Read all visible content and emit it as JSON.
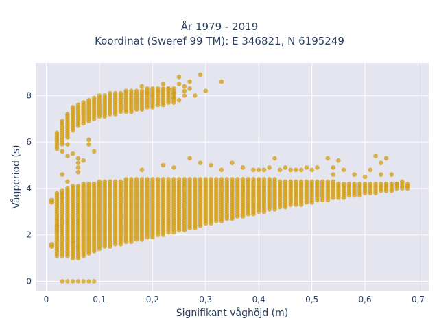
{
  "chart_data": {
    "type": "scatter",
    "title": "År 1979 - 2019",
    "subtitle": "Koordinat (Sweref 99 TM): E 346821, N 6195249",
    "xlabel": "Signifikant våghöjd (m)",
    "ylabel": "Vågperiod (s)",
    "xlim": [
      -0.02,
      0.72
    ],
    "ylim": [
      -0.4,
      9.4
    ],
    "grid": true,
    "marker_color": "#D4A017",
    "background": "#E5E5F0",
    "x_ticks": [
      {
        "value": 0,
        "label": "0"
      },
      {
        "value": 0.1,
        "label": "0,1"
      },
      {
        "value": 0.2,
        "label": "0,2"
      },
      {
        "value": 0.3,
        "label": "0,3"
      },
      {
        "value": 0.4,
        "label": "0,4"
      },
      {
        "value": 0.5,
        "label": "0,5"
      },
      {
        "value": 0.6,
        "label": "0,6"
      },
      {
        "value": 0.7,
        "label": "0,7"
      }
    ],
    "y_ticks": [
      {
        "value": 0,
        "label": "0"
      },
      {
        "value": 2,
        "label": "2"
      },
      {
        "value": 4,
        "label": "4"
      },
      {
        "value": 6,
        "label": "6"
      },
      {
        "value": 8,
        "label": "8"
      }
    ],
    "bands": [
      {
        "x_start": 0.02,
        "x_end": 0.68,
        "x_step": 0.01,
        "y_min": [
          1.1,
          1.1,
          1.1,
          1.0,
          1.0,
          1.1,
          1.2,
          1.3,
          1.4,
          1.5,
          1.5,
          1.6,
          1.6,
          1.7,
          1.7,
          1.8,
          1.8,
          1.9,
          1.9,
          2.0,
          2.0,
          2.1,
          2.1,
          2.2,
          2.2,
          2.3,
          2.3,
          2.4,
          2.5,
          2.5,
          2.6,
          2.6,
          2.7,
          2.7,
          2.8,
          2.8,
          2.9,
          2.9,
          3.0,
          3.0,
          3.1,
          3.1,
          3.2,
          3.2,
          3.3,
          3.3,
          3.3,
          3.4,
          3.4,
          3.5,
          3.5,
          3.5,
          3.6,
          3.6,
          3.6,
          3.7,
          3.7,
          3.7,
          3.8,
          3.8,
          3.8,
          3.9,
          3.9,
          3.9,
          4.0,
          4.0,
          4.0
        ],
        "y_max": [
          3.8,
          3.9,
          4.0,
          4.1,
          4.1,
          4.2,
          4.2,
          4.2,
          4.3,
          4.3,
          4.3,
          4.3,
          4.3,
          4.4,
          4.4,
          4.4,
          4.4,
          4.4,
          4.4,
          4.4,
          4.4,
          4.4,
          4.4,
          4.4,
          4.4,
          4.4,
          4.4,
          4.4,
          4.4,
          4.4,
          4.4,
          4.4,
          4.4,
          4.4,
          4.4,
          4.4,
          4.4,
          4.4,
          4.4,
          4.4,
          4.4,
          4.4,
          4.3,
          4.3,
          4.3,
          4.3,
          4.3,
          4.3,
          4.3,
          4.3,
          4.3,
          4.3,
          4.3,
          4.2,
          4.2,
          4.2,
          4.2,
          4.2,
          4.2,
          4.2,
          4.2,
          4.2,
          4.2,
          4.2,
          4.2,
          4.2,
          4.2
        ],
        "y_step": 0.1
      },
      {
        "x_start": 0.02,
        "x_end": 0.24,
        "x_step": 0.01,
        "y_min": [
          5.8,
          5.9,
          6.2,
          6.5,
          6.7,
          6.8,
          6.9,
          7.0,
          7.1,
          7.1,
          7.2,
          7.2,
          7.3,
          7.3,
          7.3,
          7.4,
          7.4,
          7.5,
          7.5,
          7.6,
          7.6,
          7.7,
          7.7
        ],
        "y_max": [
          6.4,
          6.9,
          7.2,
          7.5,
          7.6,
          7.7,
          7.8,
          7.9,
          8.0,
          8.0,
          8.1,
          8.1,
          8.1,
          8.2,
          8.2,
          8.2,
          8.2,
          8.3,
          8.3,
          8.3,
          8.3,
          8.3,
          8.3
        ],
        "y_step": 0.1
      }
    ],
    "outliers": [
      [
        0.03,
        0
      ],
      [
        0.04,
        0
      ],
      [
        0.05,
        0
      ],
      [
        0.06,
        0
      ],
      [
        0.07,
        0
      ],
      [
        0.08,
        0
      ],
      [
        0.09,
        0
      ],
      [
        0.01,
        1.6
      ],
      [
        0.01,
        1.5
      ],
      [
        0.01,
        3.5
      ],
      [
        0.01,
        3.4
      ],
      [
        0.03,
        4.6
      ],
      [
        0.04,
        4.3
      ],
      [
        0.03,
        3.8
      ],
      [
        0.03,
        3.6
      ],
      [
        0.06,
        5.3
      ],
      [
        0.06,
        5.1
      ],
      [
        0.06,
        4.9
      ],
      [
        0.07,
        5.2
      ],
      [
        0.06,
        4.7
      ],
      [
        0.08,
        5.9
      ],
      [
        0.08,
        6.1
      ],
      [
        0.09,
        5.6
      ],
      [
        0.03,
        5.6
      ],
      [
        0.04,
        5.4
      ],
      [
        0.05,
        5.5
      ],
      [
        0.04,
        5.9
      ],
      [
        0.02,
        5.7
      ],
      [
        0.18,
        8.4
      ],
      [
        0.19,
        8.1
      ],
      [
        0.2,
        8.0
      ],
      [
        0.21,
        8.2
      ],
      [
        0.22,
        8.5
      ],
      [
        0.23,
        8.3
      ],
      [
        0.24,
        8.1
      ],
      [
        0.25,
        8.8
      ],
      [
        0.25,
        8.5
      ],
      [
        0.26,
        8.4
      ],
      [
        0.26,
        8.2
      ],
      [
        0.27,
        8.6
      ],
      [
        0.28,
        8.0
      ],
      [
        0.29,
        8.9
      ],
      [
        0.3,
        8.2
      ],
      [
        0.33,
        8.6
      ],
      [
        0.24,
        7.9
      ],
      [
        0.25,
        7.8
      ],
      [
        0.26,
        8.0
      ],
      [
        0.27,
        8.3
      ],
      [
        0.18,
        4.8
      ],
      [
        0.22,
        5.0
      ],
      [
        0.24,
        4.9
      ],
      [
        0.27,
        5.3
      ],
      [
        0.29,
        5.1
      ],
      [
        0.31,
        5.0
      ],
      [
        0.33,
        4.8
      ],
      [
        0.35,
        5.1
      ],
      [
        0.37,
        4.9
      ],
      [
        0.39,
        4.8
      ],
      [
        0.4,
        4.8
      ],
      [
        0.41,
        4.8
      ],
      [
        0.42,
        4.9
      ],
      [
        0.43,
        5.3
      ],
      [
        0.44,
        4.8
      ],
      [
        0.45,
        4.9
      ],
      [
        0.46,
        4.8
      ],
      [
        0.47,
        4.8
      ],
      [
        0.48,
        4.8
      ],
      [
        0.49,
        4.9
      ],
      [
        0.5,
        4.8
      ],
      [
        0.51,
        4.9
      ],
      [
        0.53,
        5.3
      ],
      [
        0.54,
        4.9
      ],
      [
        0.55,
        5.2
      ],
      [
        0.54,
        4.6
      ],
      [
        0.56,
        4.8
      ],
      [
        0.58,
        4.6
      ],
      [
        0.6,
        4.5
      ],
      [
        0.61,
        4.8
      ],
      [
        0.62,
        5.4
      ],
      [
        0.63,
        5.1
      ],
      [
        0.63,
        4.6
      ],
      [
        0.64,
        5.3
      ],
      [
        0.65,
        4.6
      ],
      [
        0.66,
        4.2
      ],
      [
        0.67,
        4.3
      ],
      [
        0.68,
        4.1
      ],
      [
        0.06,
        1.5
      ],
      [
        0.05,
        1.7
      ],
      [
        0.02,
        2.4
      ],
      [
        0.02,
        2.2
      ]
    ]
  }
}
